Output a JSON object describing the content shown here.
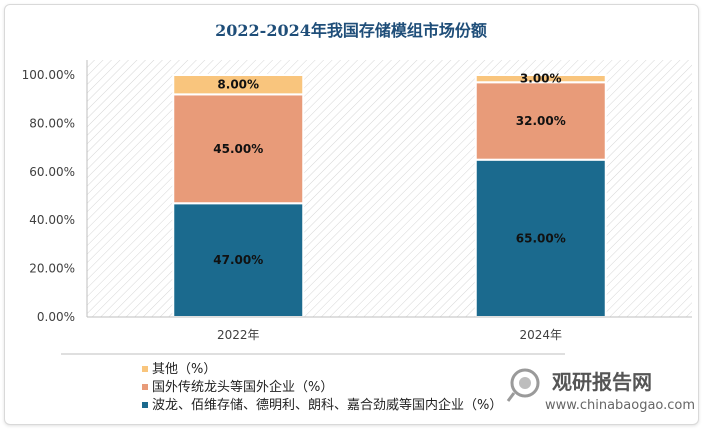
{
  "chart_data": {
    "type": "bar",
    "stacked": true,
    "title": "2022-2024年我国存储模组市场份额",
    "categories": [
      "2022年",
      "2024年"
    ],
    "y_ticks": [
      "0.00%",
      "20.00%",
      "40.00%",
      "60.00%",
      "80.00%",
      "100.00%"
    ],
    "ylim": [
      0,
      100
    ],
    "legend_position": "bottom-left",
    "series": [
      {
        "name": "波龙、佰维存储、德明利、朗科、嘉合劲威等国内企业（%）",
        "values": [
          47,
          65
        ],
        "labels": [
          "47.00%",
          "65.00%"
        ],
        "color": "#1b6a8e"
      },
      {
        "name": "国外传统龙头等国外企业（%）",
        "values": [
          45,
          32
        ],
        "labels": [
          "45.00%",
          "32.00%"
        ],
        "color": "#e89b79"
      },
      {
        "name": "其他（%）",
        "values": [
          8,
          3
        ],
        "labels": [
          "8.00%",
          "3.00%"
        ],
        "color": "#f9c57d"
      }
    ],
    "background_hatch": true
  },
  "watermark": {
    "text": "观研报告网",
    "url": "www.chinabaogao.com"
  }
}
